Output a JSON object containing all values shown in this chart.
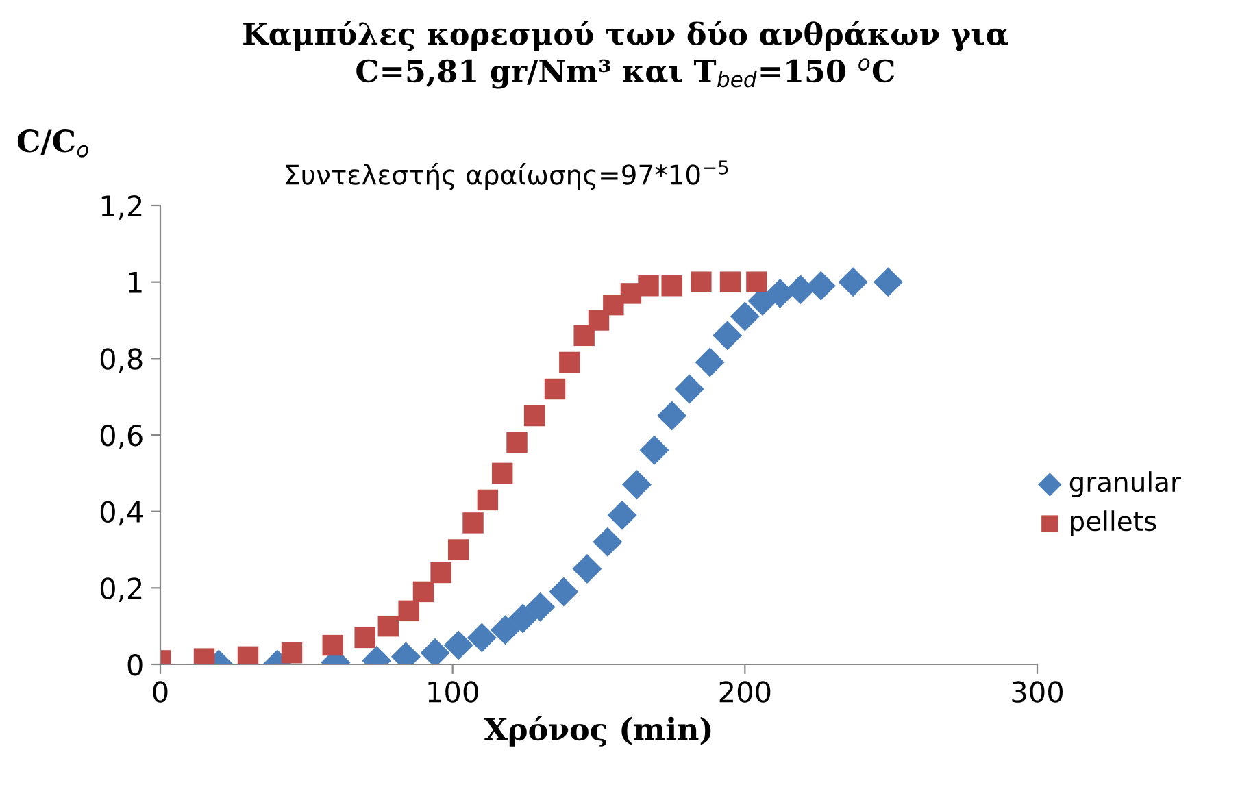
{
  "chart_data": {
    "type": "scatter",
    "title": "Καμπύλες κορεσμού των δύο ανθράκων για\nC=5,81 gr/Nm³ και T$_{bed}$=150 $^{o}$C",
    "xlabel": "Χρόνος (min)",
    "ylabel": "C/C$_{o}$",
    "annotations": [
      "Συντελεστής αραίωσης=97*10$^{−5}$"
    ],
    "xlim": [
      0,
      300
    ],
    "xticks": [
      0,
      100,
      200,
      300
    ],
    "ylim": [
      0,
      1.2
    ],
    "yticks": [
      0,
      {
        "value": 0.2,
        "label": "0,2"
      },
      {
        "value": 0.4,
        "label": "0,4"
      },
      {
        "value": 0.6,
        "label": "0,6"
      },
      {
        "value": 0.8,
        "label": "0,8"
      },
      1,
      {
        "value": 1.2,
        "label": "1,2"
      }
    ],
    "grid": false,
    "legend": "right",
    "series": [
      {
        "name": "granular",
        "color": "#4a7ebb",
        "marker": "diamond",
        "x": [
          20,
          40,
          60,
          74,
          84,
          94,
          102,
          110,
          118,
          124,
          130,
          138,
          146,
          153,
          158,
          163,
          169,
          175,
          181,
          188,
          194,
          200,
          206,
          212,
          219,
          226,
          237,
          249
        ],
        "values": [
          0,
          0,
          0.005,
          0.01,
          0.02,
          0.03,
          0.05,
          0.07,
          0.09,
          0.12,
          0.15,
          0.19,
          0.25,
          0.32,
          0.39,
          0.47,
          0.56,
          0.65,
          0.72,
          0.79,
          0.86,
          0.91,
          0.95,
          0.97,
          0.98,
          0.99,
          1.0,
          1.0
        ]
      },
      {
        "name": "pellets",
        "color": "#be4b48",
        "marker": "square",
        "x": [
          0,
          15,
          30,
          45,
          59,
          70,
          78,
          85,
          90,
          96,
          102,
          107,
          112,
          117,
          122,
          128,
          135,
          140,
          145,
          150,
          155,
          161,
          167,
          175,
          185,
          195,
          204
        ],
        "values": [
          0.01,
          0.015,
          0.02,
          0.03,
          0.05,
          0.07,
          0.1,
          0.14,
          0.19,
          0.24,
          0.3,
          0.37,
          0.43,
          0.5,
          0.58,
          0.65,
          0.72,
          0.79,
          0.86,
          0.9,
          0.94,
          0.97,
          0.99,
          0.99,
          1.0,
          1.0,
          1.0
        ]
      }
    ]
  }
}
